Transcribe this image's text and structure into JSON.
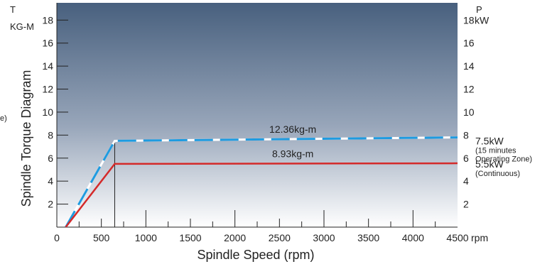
{
  "chart_data": {
    "type": "line",
    "xlabel": "Spindle Speed (rpm)",
    "ylabel": "Spindle Torque Diagram",
    "left_axis_title": "T",
    "left_axis_unit": "KG-M",
    "right_axis_title": "P",
    "right_axis_unit": "kW",
    "x_unit_suffix": "rpm",
    "partial_left_text": "e)",
    "xlim": [
      0,
      4500
    ],
    "ylim": [
      0,
      19.5
    ],
    "x_ticks": [
      "0",
      "500",
      "1000",
      "1500",
      "2000",
      "2500",
      "3000",
      "3500",
      "4000",
      "4500"
    ],
    "x_tick_values": [
      0,
      500,
      1000,
      1500,
      2000,
      2500,
      3000,
      3500,
      4000,
      4500
    ],
    "left_ticks": [
      "2",
      "4",
      "6",
      "8",
      "10",
      "12",
      "14",
      "16",
      "18"
    ],
    "left_tick_values": [
      2,
      4,
      6,
      8,
      10,
      12,
      14,
      16,
      18
    ],
    "right_ticks": [
      "2",
      "4",
      "6",
      "8",
      "10",
      "12",
      "14",
      "16",
      "18"
    ],
    "right_tick_values": [
      2,
      4,
      6,
      8,
      10,
      12,
      14,
      16,
      18
    ],
    "series": [
      {
        "name": "12.36kg-m",
        "color": "#1e9be0",
        "dash_color": "#ffffff",
        "style": "dashed",
        "x": [
          100,
          650,
          4500
        ],
        "y": [
          0,
          7.5,
          7.8
        ]
      },
      {
        "name": "8.93kg-m",
        "color": "#d42a2a",
        "style": "solid",
        "x": [
          100,
          650,
          4500
        ],
        "y": [
          0,
          5.5,
          5.55
        ]
      }
    ],
    "annotations": [
      {
        "id": "a75",
        "lines": [
          "7.5kW",
          "(15 minutes",
          "Operating Zone)"
        ],
        "value": 7.5
      },
      {
        "id": "a55",
        "lines": [
          "5.5kW",
          "(Continuous)"
        ],
        "value": 5.5
      }
    ],
    "vertical_marker_x": 650,
    "grid": false,
    "background": {
      "top": "#48607e",
      "bottom": "#ffffff"
    }
  }
}
